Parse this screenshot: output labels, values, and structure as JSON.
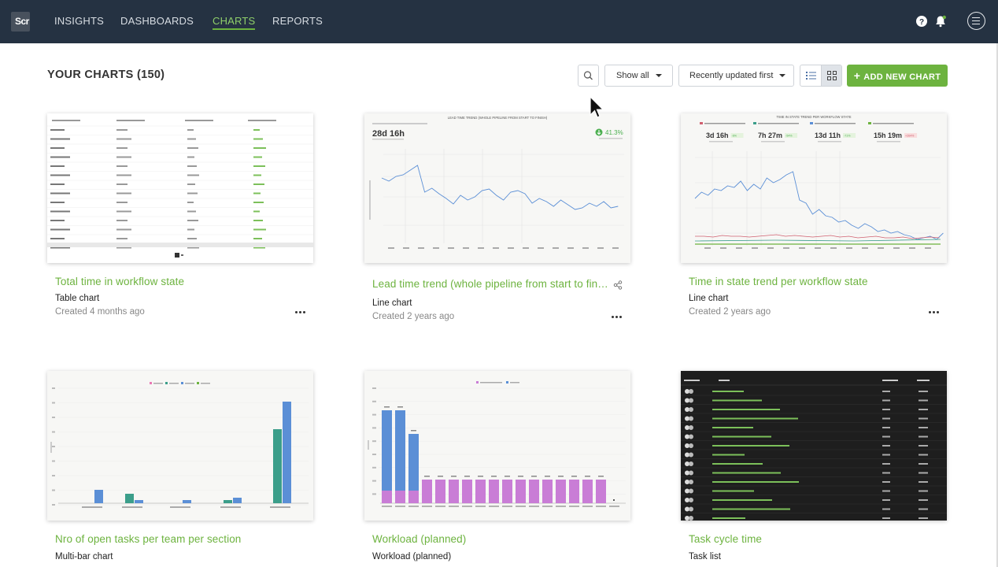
{
  "topbar": {
    "logo_text": "Scr",
    "nav": [
      "INSIGHTS",
      "DASHBOARDS",
      "CHARTS",
      "REPORTS"
    ],
    "active_nav": "CHARTS",
    "bg_color": "#253242",
    "accent_color": "#6db33f"
  },
  "page": {
    "title": "YOUR CHARTS (150)",
    "filter_label": "Show all",
    "sort_label": "Recently updated first",
    "add_label": "ADD NEW CHART",
    "view_mode": "grid"
  },
  "cards": [
    {
      "title": "Total time in workflow state",
      "type": "Table chart",
      "created": "Created 4 months ago"
    },
    {
      "title": "Lead time trend (whole pipeline from start to finish)",
      "type": "Line chart",
      "created": "Created 2 years ago",
      "shared": true
    },
    {
      "title": "Time in state trend per workflow state",
      "type": "Line chart",
      "created": "Created 2 years ago"
    },
    {
      "title": "Nro of open tasks per team per section",
      "type": "Multi-bar chart",
      "created": ""
    },
    {
      "title": "Workload (planned)",
      "type": "Workload (planned)",
      "created": ""
    },
    {
      "title": "Task cycle time",
      "type": "Task list",
      "created": ""
    }
  ],
  "thumbnails": {
    "lead_time": {
      "title": "LEAD TIME TREND (WHOLE PIPELINE FROM START TO FINISH)",
      "value": "28d 16h",
      "change": "41.3%"
    },
    "time_in_state": {
      "title": "TIME IN STATE TREND PER WORKFLOW STATE",
      "kpis": [
        {
          "value": "3d 16h",
          "delta": "-6%"
        },
        {
          "value": "7h 27m",
          "delta": "-54%"
        },
        {
          "value": "13d 11h",
          "delta": "-71%"
        },
        {
          "value": "15h 19m",
          "delta": "+264%"
        }
      ]
    }
  }
}
